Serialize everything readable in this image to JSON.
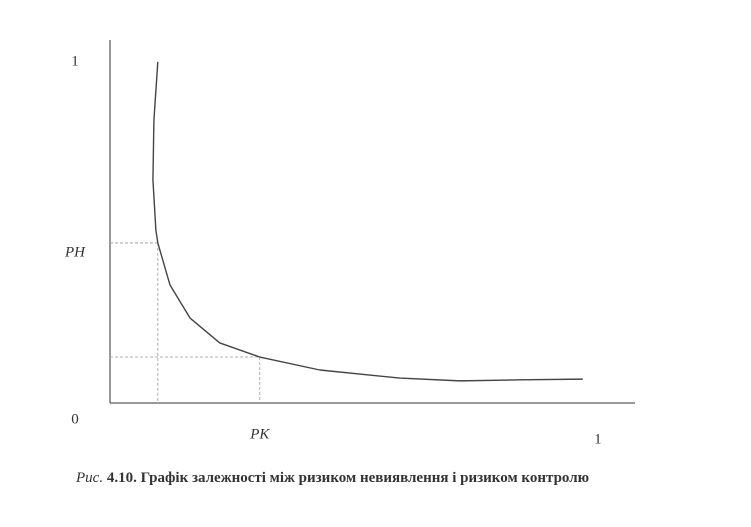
{
  "chart_data": {
    "type": "line",
    "x": [
      0.098,
      0.09,
      0.088,
      0.094,
      0.098,
      0.123,
      0.164,
      0.225,
      0.307,
      0.43,
      0.594,
      0.717,
      0.84,
      0.969
    ],
    "values": [
      0.972,
      0.806,
      0.635,
      0.493,
      0.456,
      0.336,
      0.242,
      0.171,
      0.131,
      0.094,
      0.071,
      0.063,
      0.066,
      0.068
    ],
    "color": "#444444",
    "guide_points": {
      "x": [
        0.098,
        0.307
      ],
      "y": [
        0.456,
        0.131
      ]
    },
    "xlim": [
      0,
      1.076
    ],
    "ylim": [
      0,
      1.034
    ],
    "xticks": [
      {
        "value": 0.307,
        "label": "PK"
      },
      1
    ],
    "yticks": [
      0,
      {
        "value": 0.456,
        "label": "PH"
      },
      1
    ],
    "caption_label": "Рис.",
    "caption_text": "4.10. Графік залежності між ризиком невиявлення і ризиком контролю"
  }
}
